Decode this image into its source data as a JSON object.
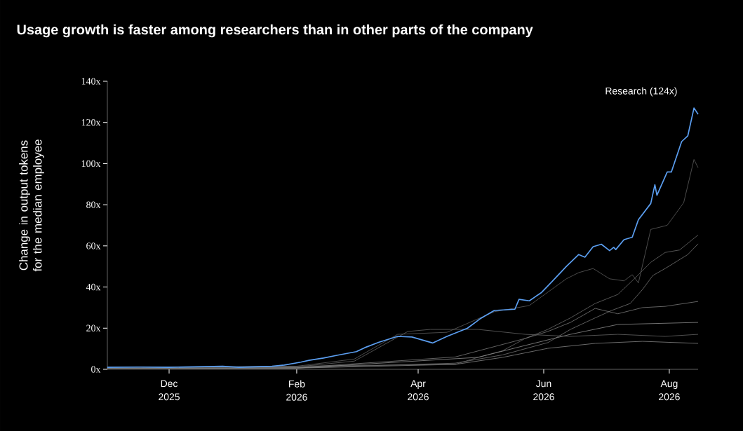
{
  "chart_data": {
    "type": "line",
    "title": "Usage growth is faster among researchers than in other parts of the company",
    "ylabel": "Change in output tokens for the median employee",
    "xlim": [
      "2025-11-01",
      "2026-08-15"
    ],
    "ylim": [
      0,
      140
    ],
    "xticks": [
      {
        "value": "2025-12-01",
        "label": "Dec 2025"
      },
      {
        "value": "2026-02-01",
        "label": "Feb 2026"
      },
      {
        "value": "2026-04-01",
        "label": "Apr 2026"
      },
      {
        "value": "2026-06-01",
        "label": "Jun 2026"
      },
      {
        "value": "2026-08-01",
        "label": "Aug 2026"
      }
    ],
    "yticks": [
      {
        "value": 0,
        "label": "0x"
      },
      {
        "value": 20,
        "label": "20x"
      },
      {
        "value": 40,
        "label": "40x"
      },
      {
        "value": 60,
        "label": "60x"
      },
      {
        "value": 80,
        "label": "80x"
      },
      {
        "value": 100,
        "label": "100x"
      },
      {
        "value": 120,
        "label": "120x"
      },
      {
        "value": 140,
        "label": "140x"
      }
    ],
    "series": [
      {
        "color": "#5e5e5e",
        "x": [
          "2025-11-01",
          "2026-02-01",
          "2026-03-01",
          "2026-03-22",
          "2026-04-15",
          "2026-05-08",
          "2026-05-25",
          "2026-06-12",
          "2026-06-18",
          "2026-06-25",
          "2026-07-03",
          "2026-07-10",
          "2026-07-14",
          "2026-07-17",
          "2026-07-23",
          "2026-07-31",
          "2026-08-08",
          "2026-08-13",
          "2026-08-15"
        ],
        "values": [
          1,
          1.5,
          5,
          17,
          18,
          28,
          31,
          44,
          47,
          49,
          44,
          43,
          46,
          42,
          68,
          70,
          81,
          102,
          98
        ]
      },
      {
        "color": "#6a6a6a",
        "x": [
          "2025-11-01",
          "2026-02-01",
          "2026-04-19",
          "2026-04-30",
          "2026-05-12",
          "2026-05-23",
          "2026-06-03",
          "2026-06-14",
          "2026-06-26",
          "2026-07-07",
          "2026-07-15",
          "2026-07-23",
          "2026-07-30",
          "2026-08-06",
          "2026-08-15"
        ],
        "values": [
          0.5,
          null,
          2.4,
          5.8,
          9,
          15,
          19.4,
          25,
          32,
          36.4,
          44,
          52,
          56.8,
          58,
          65.3
        ]
      },
      {
        "color": "#737373",
        "x": [
          "2025-11-01",
          "2026-02-01",
          "2026-04-19",
          "2026-05-12",
          "2026-06-03",
          "2026-06-14",
          "2026-06-26",
          "2026-07-04",
          "2026-07-13",
          "2026-07-19",
          "2026-07-24",
          "2026-07-30",
          "2026-08-10",
          "2026-08-15"
        ],
        "values": [
          0.5,
          0.7,
          3,
          7,
          13,
          19.4,
          25,
          28.6,
          32,
          38.8,
          45.6,
          49,
          55.8,
          61
        ]
      },
      {
        "color": "#7a7a7a",
        "x": [
          "2025-11-01",
          "2026-02-01",
          "2026-04-19",
          "2026-05-23",
          "2026-06-03",
          "2026-06-14",
          "2026-06-26",
          "2026-07-07",
          "2026-07-19",
          "2026-07-30",
          "2026-08-15"
        ],
        "values": [
          0.5,
          0.8,
          6,
          15,
          18.4,
          22.8,
          29.6,
          27,
          30,
          30.6,
          33
        ]
      },
      {
        "color": "#646464",
        "x": [
          "2025-11-01",
          "2026-02-01",
          "2026-03-01",
          "2026-03-27",
          "2026-04-07",
          "2026-04-30",
          "2026-05-23",
          "2026-06-14",
          "2026-07-07",
          "2026-07-30",
          "2026-08-15"
        ],
        "values": [
          1,
          1.2,
          4,
          18.4,
          19.4,
          19.4,
          17,
          16,
          17,
          16,
          17
        ]
      },
      {
        "color": "#858585",
        "x": [
          "2025-11-01",
          "2026-02-01",
          "2026-04-19",
          "2026-05-12",
          "2026-06-03",
          "2026-06-26",
          "2026-07-19",
          "2026-08-15"
        ],
        "values": [
          0.5,
          0.6,
          2.4,
          5.8,
          10.2,
          12.6,
          13.6,
          12.6
        ]
      },
      {
        "color": "#8e8e8e",
        "x": [
          "2025-11-01",
          "2026-02-01",
          "2026-04-30",
          "2026-05-23",
          "2026-06-14",
          "2026-07-07",
          "2026-08-15"
        ],
        "values": [
          0.5,
          0.6,
          5.8,
          11.6,
          17,
          21.8,
          22.8
        ]
      },
      {
        "name": "Research (124x)",
        "color": "#5b9ef0",
        "x": [
          "2025-11-01",
          "2025-11-17",
          "2025-12-01",
          "2025-12-27",
          "2026-01-04",
          "2026-01-20",
          "2026-01-26",
          "2026-02-03",
          "2026-02-07",
          "2026-02-14",
          "2026-02-21",
          "2026-03-02",
          "2026-03-06",
          "2026-03-13",
          "2026-03-22",
          "2026-03-29",
          "2026-04-08",
          "2026-04-15",
          "2026-04-25",
          "2026-05-01",
          "2026-05-08",
          "2026-05-18",
          "2026-05-20",
          "2026-05-25",
          "2026-05-31",
          "2026-06-05",
          "2026-06-12",
          "2026-06-18",
          "2026-06-21",
          "2026-06-25",
          "2026-06-29",
          "2026-07-03",
          "2026-07-05",
          "2026-07-06",
          "2026-07-10",
          "2026-07-14",
          "2026-07-17",
          "2026-07-23",
          "2026-07-25",
          "2026-07-26",
          "2026-07-31",
          "2026-08-02",
          "2026-08-07",
          "2026-08-10",
          "2026-08-13",
          "2026-08-15"
        ],
        "values": [
          1,
          1.1,
          1,
          1.5,
          1,
          1.5,
          2.1,
          3.5,
          4.4,
          5.5,
          6.9,
          8.6,
          10.5,
          13.2,
          16,
          15.7,
          12.8,
          16,
          20,
          24.5,
          28.6,
          29.2,
          34,
          33.3,
          37.4,
          42.6,
          50,
          55.8,
          54.5,
          59.6,
          60.8,
          57.7,
          59.3,
          58.2,
          63,
          64.2,
          72.7,
          80.6,
          89.7,
          84.6,
          95.9,
          95.9,
          110.7,
          113.5,
          127,
          124
        ]
      }
    ]
  }
}
